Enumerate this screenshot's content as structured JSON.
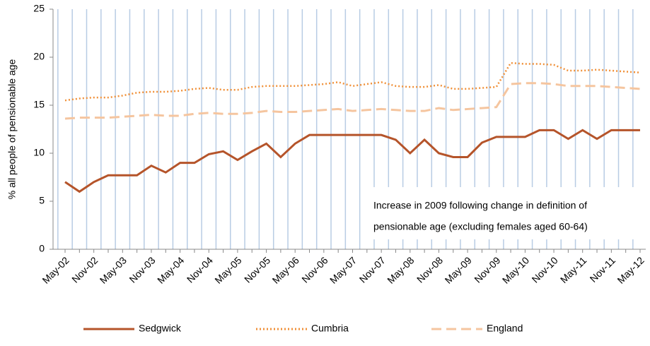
{
  "chart_data": {
    "type": "line",
    "y_label": "% all people of pensionable age",
    "annotation": [
      "Increase in 2009 following change in definition of",
      "pensionable age (excluding females aged 60-64)"
    ],
    "categories": [
      "May-02",
      null,
      "Nov-02",
      null,
      "May-03",
      null,
      "Nov-03",
      null,
      "May-04",
      null,
      "Nov-04",
      null,
      "May-05",
      null,
      "Nov-05",
      null,
      "May-06",
      null,
      "Nov-06",
      null,
      "May-07",
      null,
      "Nov-07",
      null,
      "May-08",
      null,
      "Nov-08",
      null,
      "May-09",
      null,
      "Nov-09",
      null,
      "May-10",
      null,
      "Nov-10",
      null,
      "May-11",
      null,
      "Nov-11",
      null,
      "May-12"
    ],
    "series": [
      {
        "name": "Sedgwick",
        "color": "#b5542a",
        "style": "solid",
        "values": [
          7,
          6,
          7,
          7.7,
          7.7,
          7.7,
          8.7,
          8,
          9,
          9,
          9.9,
          10.2,
          9.3,
          10.2,
          11,
          9.6,
          11,
          11.9,
          11.9,
          11.9,
          11.9,
          11.9,
          11.9,
          11.4,
          10,
          11.4,
          10,
          9.6,
          9.6,
          11.1,
          11.7,
          11.7,
          11.7,
          12.4,
          12.4,
          11.5,
          12.4,
          11.5,
          12.4,
          12.4,
          12.4
        ]
      },
      {
        "name": "Cumbria",
        "color": "#f0913a",
        "style": "dotted",
        "values": [
          15.5,
          15.7,
          15.8,
          15.8,
          16.0,
          16.3,
          16.4,
          16.4,
          16.5,
          16.7,
          16.8,
          16.6,
          16.6,
          16.9,
          17.0,
          17.0,
          17.0,
          17.1,
          17.2,
          17.4,
          17.0,
          17.2,
          17.4,
          17.0,
          16.9,
          16.9,
          17.1,
          16.7,
          16.7,
          16.8,
          16.9,
          19.4,
          19.3,
          19.3,
          19.2,
          18.6,
          18.6,
          18.7,
          18.6,
          18.5,
          18.4
        ]
      },
      {
        "name": "England",
        "color": "#f5c59f",
        "style": "dashed",
        "values": [
          13.6,
          13.7,
          13.7,
          13.7,
          13.8,
          13.9,
          14.0,
          13.9,
          13.9,
          14.1,
          14.2,
          14.1,
          14.1,
          14.2,
          14.4,
          14.3,
          14.3,
          14.4,
          14.5,
          14.6,
          14.4,
          14.5,
          14.6,
          14.5,
          14.4,
          14.4,
          14.7,
          14.5,
          14.6,
          14.7,
          14.8,
          17.2,
          17.3,
          17.3,
          17.2,
          17.0,
          17.0,
          17.0,
          16.9,
          16.8,
          16.7
        ]
      }
    ],
    "ylim": [
      0,
      25
    ],
    "yticks": [
      0,
      5,
      10,
      15,
      20,
      25
    ],
    "grid": true,
    "legend": "bottom"
  }
}
